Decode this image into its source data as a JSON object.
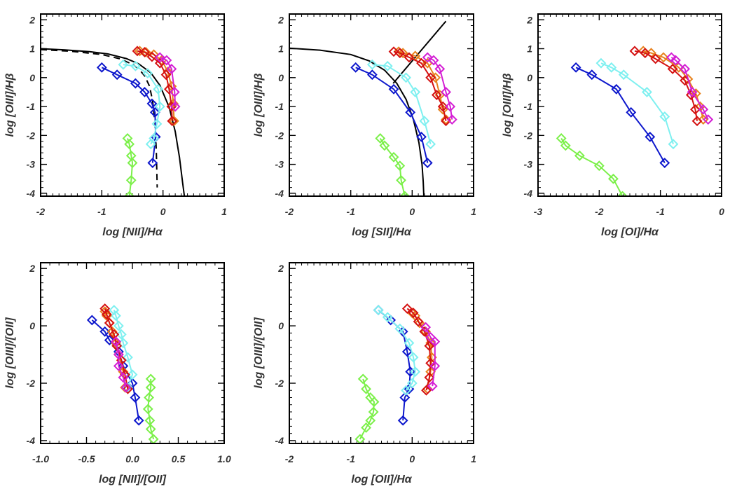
{
  "figure": {
    "description_free": true
  },
  "colors": {
    "frame": "#000000",
    "text": "#333333",
    "green": "#7cf04a",
    "blue": "#0d17cc",
    "cyan": "#7ff0f0",
    "red": "#d41212",
    "orange": "#e8821e",
    "magenta": "#d41fd4"
  },
  "chart_data": [
    {
      "type": "line",
      "xlabel_plain": "log ",
      "xlabel_bracket": "[NII]",
      "xlabel_ratio": "/Hα",
      "ylabel": "log [OIII]/Hβ",
      "xlim": [
        -2,
        1
      ],
      "ylim": [
        -4.1,
        2.2
      ],
      "xticks": [
        -2,
        -1,
        0,
        1
      ],
      "xtick_labels": [
        "-2",
        "-1",
        "0",
        "1"
      ],
      "yticks": [
        -4,
        -3,
        -2,
        -1,
        0,
        1,
        2
      ],
      "ytick_labels": [
        "-4",
        "-3",
        "-2",
        "-1",
        "0",
        "1",
        "2"
      ],
      "xminor": 0.1,
      "yminor": 0.2,
      "demarcations": [
        {
          "name": "kewley-line",
          "style": "solid",
          "x": [
            -2,
            -1.6,
            -1.2,
            -0.9,
            -0.6,
            -0.4,
            -0.2,
            -0.05,
            0.1,
            0.2,
            0.27,
            0.32,
            0.35
          ],
          "y": [
            1.0,
            0.96,
            0.9,
            0.82,
            0.66,
            0.48,
            0.17,
            -0.27,
            -1.02,
            -1.86,
            -2.76,
            -3.62,
            -4.1
          ]
        },
        {
          "name": "kauffmann-line",
          "style": "dashed",
          "x": [
            -2,
            -1.5,
            -1.0,
            -0.7,
            -0.5,
            -0.4,
            -0.3,
            -0.22,
            -0.17,
            -0.13,
            -0.11,
            -0.095
          ],
          "y": [
            0.97,
            0.91,
            0.8,
            0.65,
            0.46,
            0.31,
            0.06,
            -0.3,
            -0.8,
            -1.6,
            -2.5,
            -3.8
          ]
        }
      ],
      "series": [
        {
          "name": "green",
          "x": [
            -0.58,
            -0.55,
            -0.52,
            -0.5,
            -0.52,
            -0.55
          ],
          "y": [
            -2.1,
            -2.3,
            -2.7,
            -2.95,
            -3.55,
            -4.1
          ]
        },
        {
          "name": "blue",
          "x": [
            -1.0,
            -0.75,
            -0.45,
            -0.3,
            -0.18,
            -0.13,
            -0.12,
            -0.17
          ],
          "y": [
            0.35,
            0.1,
            -0.2,
            -0.5,
            -0.9,
            -1.2,
            -2.05,
            -2.95
          ]
        },
        {
          "name": "cyan",
          "x": [
            -0.65,
            -0.45,
            -0.25,
            -0.08,
            -0.05,
            -0.1,
            -0.15,
            -0.2
          ],
          "y": [
            0.45,
            0.4,
            0.15,
            -0.4,
            -1.0,
            -1.6,
            -2.1,
            -2.3
          ]
        },
        {
          "name": "orange",
          "x": [
            -0.38,
            -0.28,
            -0.15,
            -0.02,
            0.08,
            0.14,
            0.17,
            0.18
          ],
          "y": [
            0.92,
            0.88,
            0.8,
            0.6,
            0.2,
            -0.3,
            -0.9,
            -1.5
          ]
        },
        {
          "name": "red",
          "x": [
            -0.42,
            -0.3,
            -0.18,
            -0.05,
            0.05,
            0.1,
            0.14,
            0.15
          ],
          "y": [
            0.92,
            0.88,
            0.72,
            0.5,
            0.1,
            -0.4,
            -1.0,
            -1.5
          ]
        },
        {
          "name": "magenta",
          "x": [
            -0.05,
            0.06,
            0.14,
            0.19,
            0.2
          ],
          "y": [
            0.7,
            0.6,
            0.3,
            -0.5,
            -1.0
          ]
        }
      ]
    },
    {
      "type": "line",
      "xlabel_plain": "log ",
      "xlabel_bracket": "[SII]",
      "xlabel_ratio": "/Hα",
      "ylabel": "log [OIII]/Hβ",
      "xlim": [
        -2,
        1
      ],
      "ylim": [
        -4.1,
        2.2
      ],
      "xticks": [
        -2,
        -1,
        0,
        1
      ],
      "xtick_labels": [
        "-2",
        "-1",
        "0",
        "1"
      ],
      "yticks": [
        -4,
        -3,
        -2,
        -1,
        0,
        1,
        2
      ],
      "ytick_labels": [
        "-4",
        "-3",
        "-2",
        "-1",
        "0",
        "1",
        "2"
      ],
      "xminor": 0.1,
      "yminor": 0.2,
      "demarcations": [
        {
          "name": "kewley-sii-line",
          "style": "solid",
          "x": [
            -2,
            -1.5,
            -1.0,
            -0.7,
            -0.45,
            -0.25,
            -0.1,
            0.02,
            0.11,
            0.16,
            0.18,
            0.19
          ],
          "y": [
            1.02,
            0.95,
            0.8,
            0.58,
            0.26,
            -0.2,
            -0.75,
            -1.45,
            -2.25,
            -3.0,
            -3.6,
            -4.1
          ]
        },
        {
          "name": "seyfert-liner-line",
          "style": "solid",
          "x": [
            -0.31,
            0.55
          ],
          "y": [
            -0.2,
            1.95
          ]
        }
      ],
      "series": [
        {
          "name": "green",
          "x": [
            -0.52,
            -0.45,
            -0.3,
            -0.2,
            -0.18,
            -0.12
          ],
          "y": [
            -2.1,
            -2.35,
            -2.75,
            -3.05,
            -3.55,
            -4.1
          ]
        },
        {
          "name": "blue",
          "x": [
            -0.92,
            -0.65,
            -0.3,
            -0.03,
            0.15,
            0.25
          ],
          "y": [
            0.35,
            0.1,
            -0.4,
            -1.2,
            -2.05,
            -2.95
          ]
        },
        {
          "name": "cyan",
          "x": [
            -0.65,
            -0.4,
            -0.1,
            0.05,
            0.2,
            0.3
          ],
          "y": [
            0.45,
            0.4,
            0.0,
            -0.5,
            -1.5,
            -2.3
          ]
        },
        {
          "name": "orange",
          "x": [
            -0.22,
            -0.15,
            0.05,
            0.25,
            0.38,
            0.45,
            0.5,
            0.55
          ],
          "y": [
            0.9,
            0.85,
            0.75,
            0.5,
            0.0,
            -0.6,
            -1.1,
            -1.45
          ]
        },
        {
          "name": "red",
          "x": [
            -0.3,
            -0.2,
            -0.05,
            0.15,
            0.3,
            0.4,
            0.5,
            0.55
          ],
          "y": [
            0.9,
            0.85,
            0.7,
            0.5,
            0.0,
            -0.6,
            -1.0,
            -1.5
          ]
        },
        {
          "name": "magenta",
          "x": [
            0.25,
            0.35,
            0.45,
            0.55,
            0.62,
            0.65
          ],
          "y": [
            0.7,
            0.6,
            0.3,
            -0.5,
            -1.0,
            -1.45
          ]
        }
      ]
    },
    {
      "type": "line",
      "xlabel_plain": "log ",
      "xlabel_bracket": "[OI]",
      "xlabel_ratio": "/Hα",
      "ylabel": "log [OIII]/Hβ",
      "xlim": [
        -3,
        0
      ],
      "ylim": [
        -4.1,
        2.2
      ],
      "xticks": [
        -3,
        -2,
        -1,
        0
      ],
      "xtick_labels": [
        "-3",
        "-2",
        "-1",
        "0"
      ],
      "yticks": [
        -4,
        -3,
        -2,
        -1,
        0,
        1,
        2
      ],
      "ytick_labels": [
        "-4",
        "-3",
        "-2",
        "-1",
        "0",
        "1",
        "2"
      ],
      "xminor": 0.1,
      "yminor": 0.2,
      "demarcations": [],
      "series": [
        {
          "name": "green",
          "x": [
            -2.62,
            -2.55,
            -2.32,
            -2.0,
            -1.77,
            -1.62
          ],
          "y": [
            -2.1,
            -2.35,
            -2.7,
            -3.05,
            -3.5,
            -4.1
          ]
        },
        {
          "name": "blue",
          "x": [
            -2.38,
            -2.12,
            -1.72,
            -1.48,
            -1.17,
            -0.93
          ],
          "y": [
            0.35,
            0.1,
            -0.4,
            -1.2,
            -2.05,
            -2.95
          ]
        },
        {
          "name": "cyan",
          "x": [
            -1.97,
            -1.8,
            -1.6,
            -1.22,
            -0.93,
            -0.79
          ],
          "y": [
            0.5,
            0.35,
            0.1,
            -0.5,
            -1.35,
            -2.3
          ]
        },
        {
          "name": "orange",
          "x": [
            -1.28,
            -1.15,
            -0.95,
            -0.7,
            -0.55,
            -0.42,
            -0.35,
            -0.3
          ],
          "y": [
            0.92,
            0.85,
            0.7,
            0.35,
            -0.05,
            -0.55,
            -1.0,
            -1.45
          ]
        },
        {
          "name": "red",
          "x": [
            -1.42,
            -1.25,
            -1.08,
            -0.8,
            -0.6,
            -0.5,
            -0.43,
            -0.4
          ],
          "y": [
            0.92,
            0.85,
            0.65,
            0.3,
            -0.1,
            -0.6,
            -1.1,
            -1.5
          ]
        },
        {
          "name": "magenta",
          "x": [
            -0.82,
            -0.75,
            -0.6,
            -0.48,
            -0.3,
            -0.22
          ],
          "y": [
            0.7,
            0.6,
            0.3,
            -0.5,
            -1.1,
            -1.45
          ]
        }
      ]
    },
    {
      "type": "line",
      "xlabel_plain": "log ",
      "xlabel_bracket": "[NII]/[OII]",
      "xlabel_ratio": "",
      "ylabel": "log [OIII]/[OII]",
      "xlim": [
        -1.0,
        1.0
      ],
      "ylim": [
        -4.1,
        2.2
      ],
      "xticks": [
        -1.0,
        -0.5,
        0.0,
        0.5,
        1.0
      ],
      "xtick_labels": [
        "-1.0",
        "-0.5",
        "0.0",
        "0.5",
        "1.0"
      ],
      "yticks": [
        -4,
        -2,
        0,
        2
      ],
      "ytick_labels": [
        "-4",
        "-2",
        "0",
        "2"
      ],
      "xminor": 0.1,
      "yminor": 0.25,
      "demarcations": [],
      "series": [
        {
          "name": "green",
          "x": [
            0.2,
            0.2,
            0.18,
            0.17,
            0.19,
            0.2,
            0.23
          ],
          "y": [
            -1.85,
            -2.15,
            -2.5,
            -2.9,
            -3.3,
            -3.6,
            -3.95
          ]
        },
        {
          "name": "blue",
          "x": [
            -0.44,
            -0.3,
            -0.25,
            -0.15,
            -0.1,
            0.0,
            0.03,
            0.07
          ],
          "y": [
            0.2,
            -0.2,
            -0.5,
            -0.9,
            -1.4,
            -2.0,
            -2.5,
            -3.3
          ]
        },
        {
          "name": "cyan",
          "x": [
            -0.2,
            -0.18,
            -0.15,
            -0.12,
            -0.1,
            -0.05,
            0.0,
            -0.05
          ],
          "y": [
            0.55,
            0.35,
            0.0,
            -0.3,
            -0.6,
            -1.1,
            -1.7,
            -2.15
          ]
        },
        {
          "name": "orange",
          "x": [
            -0.3,
            -0.28,
            -0.25,
            -0.22,
            -0.18,
            -0.15,
            -0.1,
            -0.08
          ],
          "y": [
            0.5,
            0.35,
            0.1,
            -0.2,
            -0.6,
            -1.0,
            -1.6,
            -2.15
          ]
        },
        {
          "name": "red",
          "x": [
            -0.3,
            -0.28,
            -0.25,
            -0.2,
            -0.17,
            -0.12,
            -0.08,
            -0.05
          ],
          "y": [
            0.6,
            0.4,
            0.1,
            -0.3,
            -0.7,
            -1.2,
            -1.7,
            -2.2
          ]
        },
        {
          "name": "magenta",
          "x": [
            -0.18,
            -0.15,
            -0.15,
            -0.1,
            -0.07
          ],
          "y": [
            -0.55,
            -1.0,
            -1.4,
            -1.8,
            -2.15
          ]
        }
      ]
    },
    {
      "type": "line",
      "xlabel_plain": "log ",
      "xlabel_bracket": "[OII]",
      "xlabel_ratio": "/Hα",
      "ylabel": "log [OIII]/[OII]",
      "xlim": [
        -2,
        1
      ],
      "ylim": [
        -4.1,
        2.2
      ],
      "xticks": [
        -2,
        -1,
        0,
        1
      ],
      "xtick_labels": [
        "-2",
        "-1",
        "0",
        "1"
      ],
      "yticks": [
        -4,
        -2,
        0,
        2
      ],
      "ytick_labels": [
        "-4",
        "-2",
        "0",
        "2"
      ],
      "xminor": 0.1,
      "yminor": 0.25,
      "demarcations": [],
      "series": [
        {
          "name": "green",
          "x": [
            -0.8,
            -0.75,
            -0.68,
            -0.62,
            -0.63,
            -0.68,
            -0.75,
            -0.85
          ],
          "y": [
            -1.85,
            -2.2,
            -2.5,
            -2.65,
            -3.0,
            -3.3,
            -3.55,
            -3.95
          ]
        },
        {
          "name": "blue",
          "x": [
            -0.55,
            -0.35,
            -0.15,
            -0.08,
            -0.03,
            -0.05,
            -0.12,
            -0.15
          ],
          "y": [
            0.55,
            0.2,
            -0.2,
            -0.9,
            -1.6,
            -2.2,
            -2.5,
            -3.3
          ]
        },
        {
          "name": "cyan",
          "x": [
            -0.55,
            -0.4,
            -0.2,
            -0.05,
            0.02,
            0.05,
            0.0,
            -0.1
          ],
          "y": [
            0.55,
            0.3,
            -0.1,
            -0.6,
            -1.1,
            -1.6,
            -2.0,
            -2.25
          ]
        },
        {
          "name": "orange",
          "x": [
            0.0,
            0.05,
            0.12,
            0.22,
            0.3,
            0.32,
            0.3,
            0.25
          ],
          "y": [
            0.45,
            0.35,
            0.1,
            -0.2,
            -0.6,
            -1.1,
            -1.6,
            -2.2
          ]
        },
        {
          "name": "red",
          "x": [
            -0.08,
            0.02,
            0.1,
            0.2,
            0.28,
            0.3,
            0.28,
            0.23
          ],
          "y": [
            0.6,
            0.45,
            0.15,
            -0.2,
            -0.7,
            -1.3,
            -1.8,
            -2.25
          ]
        },
        {
          "name": "magenta",
          "x": [
            0.22,
            0.3,
            0.37,
            0.37,
            0.33
          ],
          "y": [
            -0.05,
            -0.4,
            -0.55,
            -1.4,
            -2.1
          ]
        }
      ]
    }
  ]
}
